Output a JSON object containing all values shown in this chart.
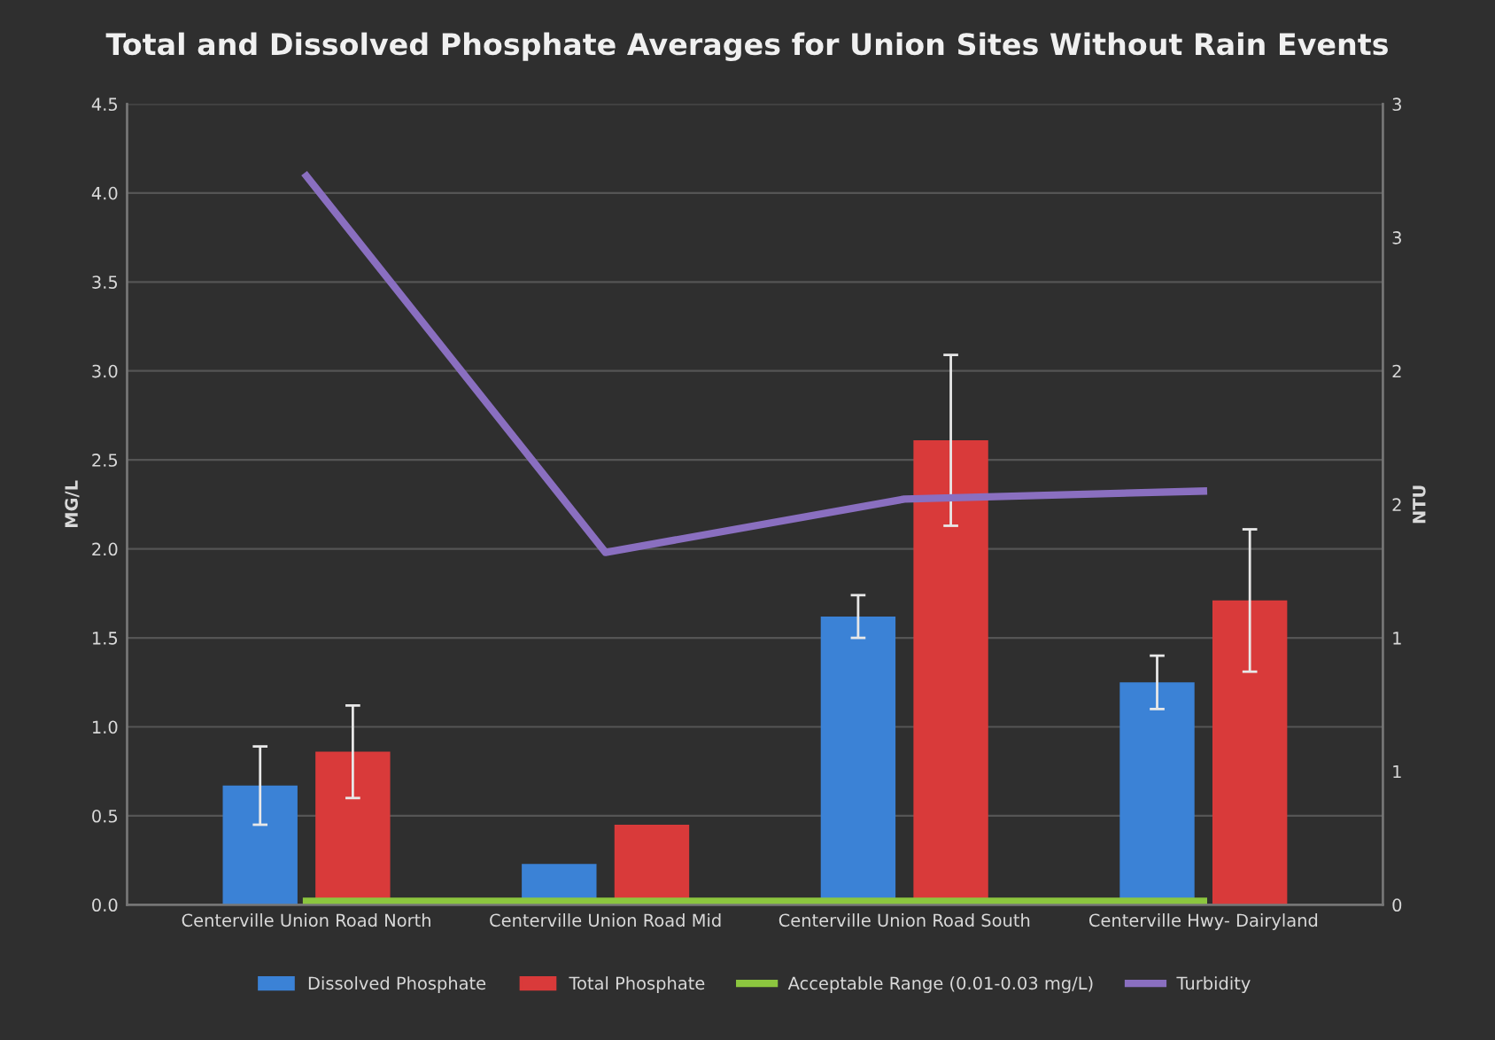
{
  "chart_data": {
    "type": "bar",
    "title": "Total and Dissolved Phosphate Averages for Union Sites Without Rain Events",
    "categories": [
      "Centerville Union Road North",
      "Centerville Union Road Mid",
      "Centerville Union Road South",
      "Centerville Hwy- Dairyland"
    ],
    "series": [
      {
        "name": "Dissolved Phosphate",
        "color": "#3b82d6",
        "values": [
          0.67,
          0.23,
          1.62,
          1.25
        ],
        "errors": [
          0.22,
          null,
          0.12,
          0.15
        ]
      },
      {
        "name": "Total Phosphate",
        "color": "#d93a3a",
        "values": [
          0.86,
          0.45,
          2.61,
          1.71
        ],
        "errors": [
          0.26,
          null,
          0.48,
          0.4
        ]
      },
      {
        "name": "Acceptable Range (0.01-0.03 mg/L)",
        "type": "line",
        "color": "#8cc63f",
        "values": [
          0.02,
          0.02,
          0.02,
          0.02
        ]
      },
      {
        "name": "Turbidity",
        "type": "line",
        "axis": "y2",
        "color": "#8a6fc0",
        "values": [
          2.73,
          1.32,
          1.52,
          1.55
        ]
      }
    ],
    "ylabel": "MG/L",
    "y2label": "NTU",
    "ylim": [
      0,
      4.5
    ],
    "yticks": [
      {
        "value": 0,
        "label": "0.0"
      },
      0.5,
      {
        "value": 1,
        "label": "1.0"
      },
      1.5,
      {
        "value": 2,
        "label": "2.0"
      },
      2.5,
      {
        "value": 3,
        "label": "3.0"
      },
      3.5,
      {
        "value": 4,
        "label": "4.0"
      },
      4.5
    ],
    "y2lim": [
      0,
      3
    ],
    "y2ticks": [
      {
        "value": 0,
        "label": "0"
      },
      {
        "value": 0.5,
        "label": "1"
      },
      {
        "value": 1,
        "label": "1"
      },
      {
        "value": 1.5,
        "label": "2"
      },
      {
        "value": 2,
        "label": "2"
      },
      {
        "value": 2.5,
        "label": "3"
      },
      {
        "value": 3,
        "label": "3"
      }
    ],
    "grid": "y",
    "legend": "bottom",
    "marker": "none",
    "line_style": "solid"
  }
}
